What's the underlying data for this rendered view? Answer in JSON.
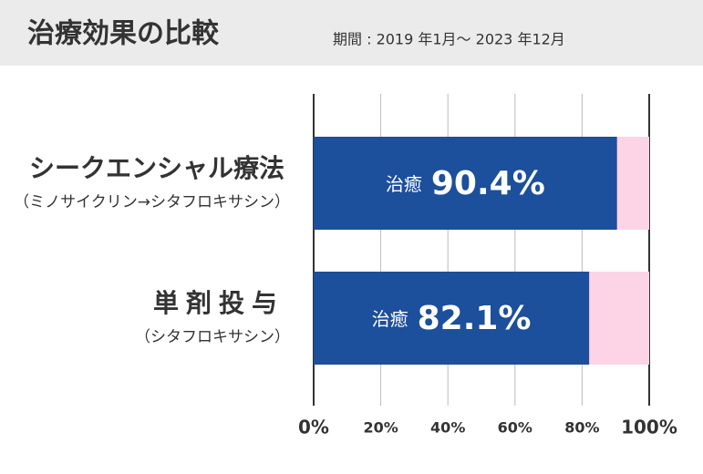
{
  "chart_data": {
    "type": "hbar",
    "title": "治療効果の比較",
    "subtitle": "期間 : 2019 年1月～ 2023 年12月",
    "categories": [
      "シークエンシャル療法",
      "単剤投与"
    ],
    "category_notes": [
      "（ミノサイクリン→シタフロキサシン）",
      "（シタフロキサシン）"
    ],
    "values": [
      90.4,
      82.1
    ],
    "value_labels": [
      "90.4%",
      "82.1%"
    ],
    "value_label_prefix": "治癒",
    "color": "#1c4f9c",
    "track_color": "#fcd4e6",
    "xlim": [
      0,
      100
    ],
    "xticks": [
      {
        "value": 0,
        "label": "0%"
      },
      {
        "value": 20,
        "label": "20%"
      },
      {
        "value": 40,
        "label": "40%"
      },
      {
        "value": 60,
        "label": "60%"
      },
      {
        "value": 80,
        "label": "80%"
      },
      {
        "value": 100,
        "label": "100%"
      }
    ],
    "grid": true
  }
}
